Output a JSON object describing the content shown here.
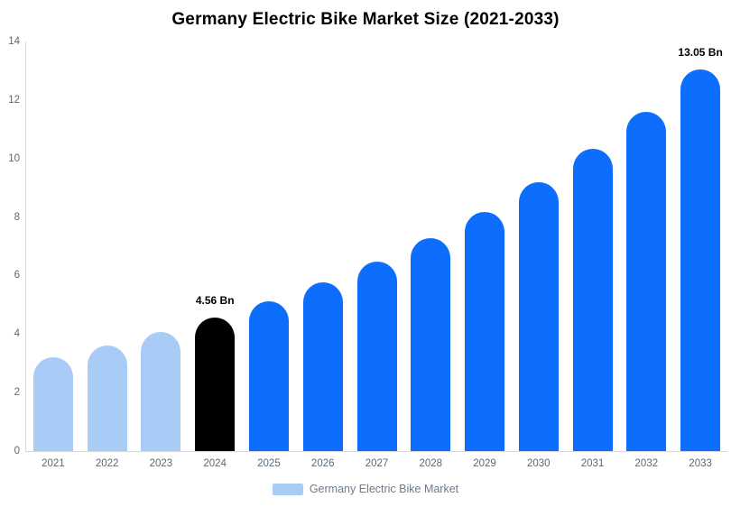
{
  "chart_data": {
    "type": "bar",
    "title": "Germany Electric Bike Market Size (2021-2033)",
    "categories": [
      "2021",
      "2022",
      "2023",
      "2024",
      "2025",
      "2026",
      "2027",
      "2028",
      "2029",
      "2030",
      "2031",
      "2032",
      "2033"
    ],
    "values": [
      3.21,
      3.61,
      4.06,
      4.56,
      5.12,
      5.76,
      6.47,
      7.28,
      8.18,
      9.19,
      10.33,
      11.61,
      13.05
    ],
    "unit": "Bn",
    "ylim": [
      0,
      14
    ],
    "y_ticks": [
      0,
      2,
      4,
      6,
      8,
      10,
      12,
      14
    ],
    "grid": false,
    "xlabel": "",
    "ylabel": "",
    "bar_colors": [
      "#A9CCF6",
      "#A9CCF6",
      "#A9CCF6",
      "#000000",
      "#0D6EFD",
      "#0D6EFD",
      "#0D6EFD",
      "#0D6EFD",
      "#0D6EFD",
      "#0D6EFD",
      "#0D6EFD",
      "#0D6EFD",
      "#0D6EFD"
    ],
    "annotations": [
      {
        "index": 3,
        "text": "4.56 Bn"
      },
      {
        "index": 12,
        "text": "13.05 Bn"
      }
    ],
    "legend": {
      "position": "bottom",
      "label": "Germany Electric Bike Market",
      "swatch_color": "#A9CCF6"
    }
  },
  "colors": {
    "background": "#FFFFFF",
    "axis_line": "#D9D9D9",
    "tick_text": "#5C6873",
    "title_text": "#000000",
    "annotation_text": "#000000",
    "legend_text": "#6B7A90",
    "bar_light_blue": "#A9CCF6",
    "bar_primary_blue": "#0D6EFD",
    "bar_highlight_black": "#000000"
  }
}
